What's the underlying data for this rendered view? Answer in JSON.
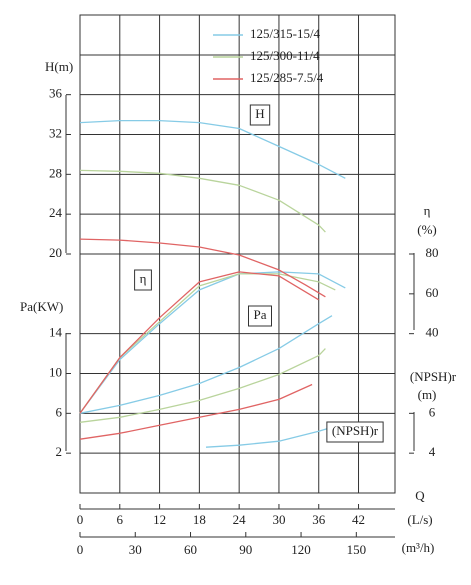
{
  "chart_data": {
    "type": "line",
    "x_label": "Q",
    "x_unit": "(L/s)",
    "xlim": [
      0,
      47.5
    ],
    "xticks": [
      0,
      6,
      12,
      18,
      24,
      30,
      36,
      42
    ],
    "x2_unit": "(m³/h)",
    "x2lim": [
      0,
      171
    ],
    "x2ticks": [
      0,
      30,
      60,
      90,
      120,
      150
    ],
    "grid": true,
    "axes": {
      "H": {
        "label": "H(m)",
        "ylim": [
          -4,
          44
        ],
        "yticks": [
          20,
          24,
          28,
          32,
          36
        ],
        "curve_label": "H"
      },
      "eta": {
        "label": "η",
        "unit": "(%)",
        "ylim": [
          -40,
          200
        ],
        "yticks": [
          40,
          60,
          80
        ],
        "curve_label": "η"
      },
      "Pa": {
        "label": "Pa(KW)",
        "ylim": [
          -2,
          46
        ],
        "yticks": [
          2,
          6,
          10,
          14
        ],
        "curve_label": "Pa"
      },
      "NPSH": {
        "label": "(NPSH)r",
        "unit": "(m)",
        "ylim": [
          2,
          26
        ],
        "yticks": [
          4,
          6
        ],
        "curve_label": "(NPSH)r"
      }
    },
    "series": [
      {
        "name": "125/315-15/4",
        "color": "#86cbe6",
        "curves": {
          "H": {
            "x": [
              0,
              6,
              12,
              18,
              24,
              30,
              36,
              40
            ],
            "values": [
              33.2,
              33.4,
              33.4,
              33.2,
              32.6,
              30.8,
              29,
              27.6
            ]
          },
          "eta": {
            "x": [
              0,
              6,
              12,
              18,
              24,
              30,
              36,
              40
            ],
            "values": [
              0,
              27,
              45,
              62,
              70,
              71,
              70,
              63
            ]
          },
          "Pa": {
            "x": [
              0,
              6,
              12,
              18,
              24,
              30,
              36,
              38
            ],
            "values": [
              6,
              6.8,
              7.8,
              9,
              10.6,
              12.5,
              15,
              15.8
            ]
          },
          "NPSH": {
            "x": [
              19,
              24,
              30,
              36,
              40
            ],
            "values": [
              4.3,
              4.4,
              4.6,
              5.1,
              5.5
            ]
          }
        }
      },
      {
        "name": "125/300-11/4",
        "color": "#b9d49c",
        "curves": {
          "H": {
            "x": [
              0,
              6,
              12,
              18,
              24,
              30,
              36,
              37
            ],
            "values": [
              28.4,
              28.3,
              28.1,
              27.6,
              26.9,
              25.4,
              22.9,
              22.2
            ]
          },
          "eta": {
            "x": [
              0,
              6,
              12,
              18,
              24,
              30,
              36,
              38.5
            ],
            "values": [
              0,
              28,
              46,
              64,
              70,
              70,
              66,
              62
            ]
          },
          "Pa": {
            "x": [
              0,
              6,
              12,
              18,
              24,
              30,
              36,
              37
            ],
            "values": [
              5.1,
              5.6,
              6.4,
              7.3,
              8.5,
              9.9,
              11.8,
              12.5
            ]
          }
        }
      },
      {
        "name": "125/285-7.5/4",
        "color": "#e06464",
        "curves": {
          "H": {
            "x": [
              0,
              6,
              12,
              18,
              24,
              30,
              34,
              37
            ],
            "values": [
              21.5,
              21.4,
              21.1,
              20.7,
              19.9,
              18.4,
              16.9,
              15.7
            ]
          },
          "eta": {
            "x": [
              0,
              6,
              12,
              18,
              24,
              30,
              36
            ],
            "values": [
              0,
              28,
              48,
              66,
              71,
              69,
              57
            ]
          },
          "Pa": {
            "x": [
              0,
              6,
              12,
              18,
              24,
              30,
              35
            ],
            "values": [
              3.4,
              4,
              4.8,
              5.6,
              6.4,
              7.4,
              8.9
            ]
          }
        }
      }
    ]
  }
}
